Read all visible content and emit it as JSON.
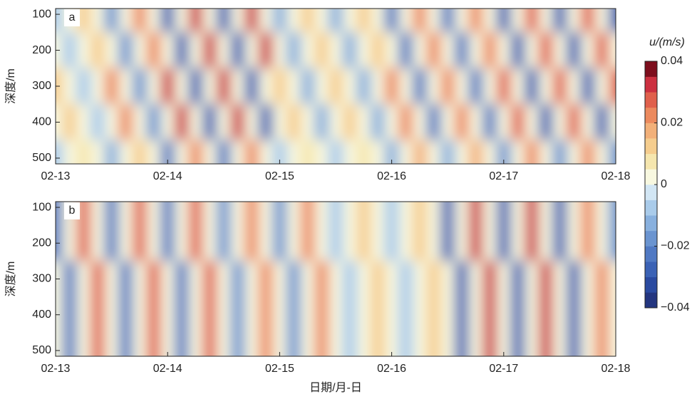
{
  "chart_data": [
    {
      "type": "contour",
      "label": "a",
      "ylabel": "深度/m",
      "x": [
        0,
        0.125,
        0.25,
        0.375,
        0.5,
        0.625,
        0.75,
        0.875,
        1,
        1.125,
        1.25,
        1.375,
        1.5,
        1.625,
        1.75,
        1.875,
        2,
        2.125,
        2.25,
        2.375,
        2.5,
        2.625,
        2.75,
        2.875,
        3,
        3.125,
        3.25,
        3.375,
        3.5,
        3.625,
        3.75,
        3.875,
        4,
        4.125,
        4.25,
        4.375,
        4.5,
        4.625,
        4.75,
        4.875,
        5
      ],
      "y": [
        100,
        200,
        300,
        400,
        500
      ],
      "z": [
        [
          -0.01,
          0,
          0.01,
          0,
          -0.02,
          0,
          0.02,
          0,
          -0.03,
          0,
          0.03,
          0,
          -0.03,
          0,
          0.03,
          0,
          -0.012,
          0,
          0.012,
          0,
          -0.012,
          0,
          0.012,
          0,
          -0.022,
          0,
          0.022,
          0,
          -0.022,
          0,
          0.022,
          0,
          -0.028,
          0,
          0.028,
          0,
          -0.028,
          0,
          0.028,
          0,
          -0.028
        ],
        [
          0,
          -0.01,
          0,
          0.01,
          0,
          -0.02,
          0,
          0.02,
          0,
          -0.03,
          0,
          0.03,
          0,
          -0.03,
          0,
          0.03,
          0,
          -0.012,
          0,
          0.012,
          0,
          -0.012,
          0,
          0.012,
          0,
          -0.022,
          0,
          0.022,
          0,
          -0.022,
          0,
          0.022,
          0,
          -0.028,
          0,
          0.028,
          0,
          -0.028,
          0,
          0.028,
          0
        ],
        [
          0.01,
          0,
          -0.01,
          0,
          0.02,
          0,
          -0.02,
          0,
          0.03,
          0,
          -0.03,
          0,
          0.03,
          0,
          -0.03,
          0,
          0.012,
          0,
          -0.012,
          0,
          0.012,
          0,
          -0.012,
          0,
          0.022,
          0,
          -0.022,
          0,
          0.022,
          0,
          -0.022,
          0,
          0.028,
          0,
          -0.028,
          0,
          0.028,
          0,
          -0.028,
          0,
          0.028
        ],
        [
          0,
          0.01,
          0,
          -0.01,
          0,
          0.02,
          0,
          -0.02,
          0,
          0.03,
          0,
          -0.03,
          0,
          0.03,
          0,
          -0.03,
          0,
          0.012,
          0,
          -0.012,
          0,
          0.012,
          0,
          -0.012,
          0,
          0.022,
          0,
          -0.022,
          0,
          0.022,
          0,
          -0.022,
          0,
          0.028,
          0,
          -0.028,
          0,
          0.028,
          0,
          -0.028,
          0
        ],
        [
          -0.007,
          0,
          0.007,
          0,
          -0.014,
          0,
          0.014,
          0,
          -0.021,
          0,
          0.021,
          0,
          -0.021,
          0,
          0.021,
          0,
          -0.008,
          0,
          0.008,
          0,
          -0.008,
          0,
          0.008,
          0,
          -0.015,
          0,
          0.015,
          0,
          -0.015,
          0,
          0.015,
          0,
          -0.02,
          0,
          0.02,
          0,
          -0.02,
          0,
          0.02,
          0,
          -0.02
        ]
      ],
      "xlim": [
        0,
        5
      ],
      "xticks": [
        {
          "value": 0,
          "label": "02-13"
        },
        {
          "value": 1,
          "label": "02-14"
        },
        {
          "value": 2,
          "label": "02-15"
        },
        {
          "value": 3,
          "label": "02-16"
        },
        {
          "value": 4,
          "label": "02-17"
        },
        {
          "value": 5,
          "label": "02-18"
        }
      ],
      "ylim": [
        84,
        516
      ],
      "yticks": [
        100,
        200,
        300,
        400,
        500
      ]
    },
    {
      "type": "contour",
      "label": "b",
      "ylabel": "深度/m",
      "xlabel": "日期/月-日",
      "x": [
        0,
        0.125,
        0.25,
        0.375,
        0.5,
        0.625,
        0.75,
        0.875,
        1,
        1.125,
        1.25,
        1.375,
        1.5,
        1.625,
        1.75,
        1.875,
        2,
        2.125,
        2.25,
        2.375,
        2.5,
        2.625,
        2.75,
        2.875,
        3,
        3.125,
        3.25,
        3.375,
        3.5,
        3.625,
        3.75,
        3.875,
        4,
        4.125,
        4.25,
        4.375,
        4.5,
        4.625,
        4.75,
        4.875,
        5
      ],
      "y": [
        100,
        200,
        300,
        400,
        500
      ],
      "z": [
        [
          -0.025,
          0,
          0.025,
          0,
          -0.025,
          0,
          0.025,
          0,
          -0.025,
          0,
          0.025,
          0,
          -0.02,
          0,
          0.02,
          0,
          -0.02,
          0,
          0.02,
          0,
          -0.01,
          0,
          0.01,
          0,
          -0.01,
          0,
          0.01,
          0,
          -0.03,
          0,
          0.03,
          0,
          -0.03,
          0,
          0.03,
          0,
          -0.03,
          0,
          0.02,
          0,
          -0.02
        ],
        [
          -0.025,
          0,
          0.025,
          0,
          -0.025,
          0,
          0.025,
          0,
          -0.025,
          0,
          0.025,
          0,
          -0.02,
          0,
          0.02,
          0,
          -0.02,
          0,
          0.02,
          0,
          -0.01,
          0,
          0.01,
          0,
          -0.01,
          0,
          0.01,
          0,
          -0.03,
          0,
          0.03,
          0,
          -0.03,
          0,
          0.03,
          0,
          -0.03,
          0,
          0.02,
          0,
          -0.02
        ],
        [
          0,
          -0.025,
          0,
          0.025,
          0,
          -0.025,
          0,
          0.025,
          0,
          -0.025,
          0,
          0.025,
          0,
          -0.02,
          0,
          0.02,
          0,
          -0.02,
          0,
          0.02,
          0,
          -0.01,
          0,
          0.01,
          0,
          -0.01,
          0,
          0.01,
          0,
          -0.03,
          0,
          0.03,
          0,
          -0.03,
          0,
          0.03,
          0,
          -0.03,
          0,
          0.02,
          0
        ],
        [
          0,
          -0.025,
          0,
          0.025,
          0,
          -0.025,
          0,
          0.025,
          0,
          -0.025,
          0,
          0.025,
          0,
          -0.02,
          0,
          0.02,
          0,
          -0.02,
          0,
          0.02,
          0,
          -0.01,
          0,
          0.01,
          0,
          -0.01,
          0,
          0.01,
          0,
          -0.03,
          0,
          0.03,
          0,
          -0.03,
          0,
          0.03,
          0,
          -0.03,
          0,
          0.02,
          0
        ],
        [
          0,
          -0.025,
          0,
          0.025,
          0,
          -0.025,
          0,
          0.025,
          0,
          -0.025,
          0,
          0.025,
          0,
          -0.02,
          0,
          0.02,
          0,
          -0.02,
          0,
          0.02,
          0,
          -0.01,
          0,
          0.01,
          0,
          -0.01,
          0,
          0.01,
          0,
          -0.03,
          0,
          0.03,
          0,
          -0.03,
          0,
          0.03,
          0,
          -0.03,
          0,
          0.02,
          0
        ]
      ],
      "xlim": [
        0,
        5
      ],
      "xticks": [
        {
          "value": 0,
          "label": "02-13"
        },
        {
          "value": 1,
          "label": "02-14"
        },
        {
          "value": 2,
          "label": "02-15"
        },
        {
          "value": 3,
          "label": "02-16"
        },
        {
          "value": 4,
          "label": "02-17"
        },
        {
          "value": 5,
          "label": "02-18"
        }
      ],
      "ylim": [
        84,
        516
      ],
      "yticks": [
        100,
        200,
        300,
        400,
        500
      ]
    }
  ],
  "colorbar": {
    "title": "u/(m/s)",
    "lim": [
      -0.04,
      0.04
    ],
    "ticks": [
      0.04,
      0.02,
      0,
      {
        "value": -0.02,
        "label": "−0.02"
      },
      {
        "value": -0.04,
        "label": "−0.04"
      }
    ],
    "colors": [
      "#23357f",
      "#2a4aa0",
      "#3b62b5",
      "#5079c3",
      "#6a94d0",
      "#88b0de",
      "#a9cbea",
      "#d2e6f4",
      "#f8f8e0",
      "#f5e6ae",
      "#f5cd8e",
      "#f2b079",
      "#ec8a5e",
      "#e0604c",
      "#cc3040",
      "#7d0e1d"
    ]
  }
}
